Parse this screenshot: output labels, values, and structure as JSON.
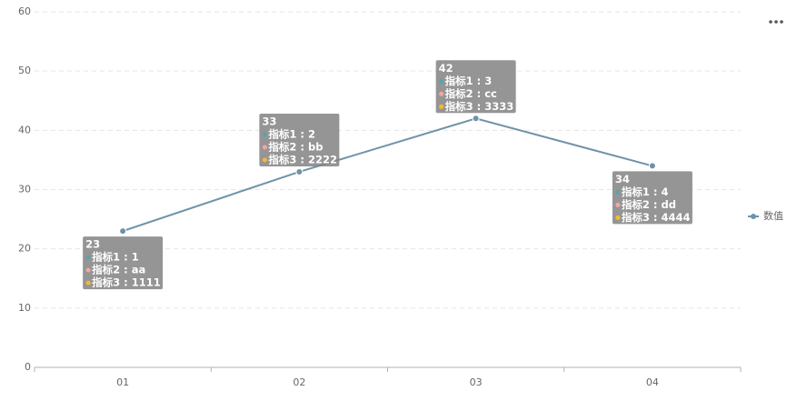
{
  "chart_data": {
    "type": "line",
    "categories": [
      "01",
      "02",
      "03",
      "04"
    ],
    "series": [
      {
        "name": "数值",
        "color": "#6e93a8",
        "values": [
          23,
          33,
          42,
          34
        ],
        "tooltip_lines": [
          [
            "指标1 : 1",
            "指标2 : aa",
            "指标3 : 1111"
          ],
          [
            "指标1 : 2",
            "指标2 : bb",
            "指标3 : 2222"
          ],
          [
            "指标1 : 3",
            "指标2 : cc",
            "指标3 : 3333"
          ],
          [
            "指标1 : 4",
            "指标2 : dd",
            "指标3 : 4444"
          ]
        ],
        "tooltip_colors": [
          "#61a0a8",
          "#f4a6a0",
          "#f5b930"
        ]
      }
    ],
    "ylim": [
      0,
      60
    ],
    "yticks": [
      0,
      10,
      20,
      30,
      40,
      50,
      60
    ],
    "grid": true,
    "legend": "right"
  }
}
